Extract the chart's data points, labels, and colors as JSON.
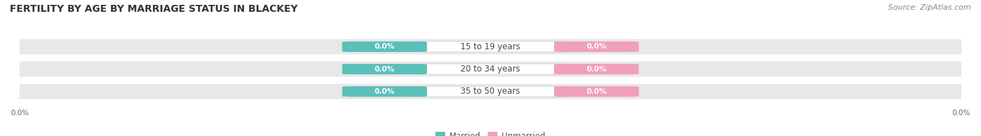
{
  "title": "FERTILITY BY AGE BY MARRIAGE STATUS IN BLACKEY",
  "source": "Source: ZipAtlas.com",
  "categories": [
    "15 to 19 years",
    "20 to 34 years",
    "35 to 50 years"
  ],
  "married_values": [
    0.0,
    0.0,
    0.0
  ],
  "unmarried_values": [
    0.0,
    0.0,
    0.0
  ],
  "married_color": "#5BBFBA",
  "unmarried_color": "#F0A0B8",
  "bar_bg_color": "#E8E8E8",
  "figsize": [
    14.06,
    1.96
  ],
  "dpi": 100,
  "title_fontsize": 10,
  "source_fontsize": 8,
  "tick_fontsize": 7.5,
  "label_fontsize": 8.5,
  "legend_fontsize": 8.5,
  "xlim": [
    -1.0,
    1.0
  ],
  "bg_bar_alpha": 1.0
}
